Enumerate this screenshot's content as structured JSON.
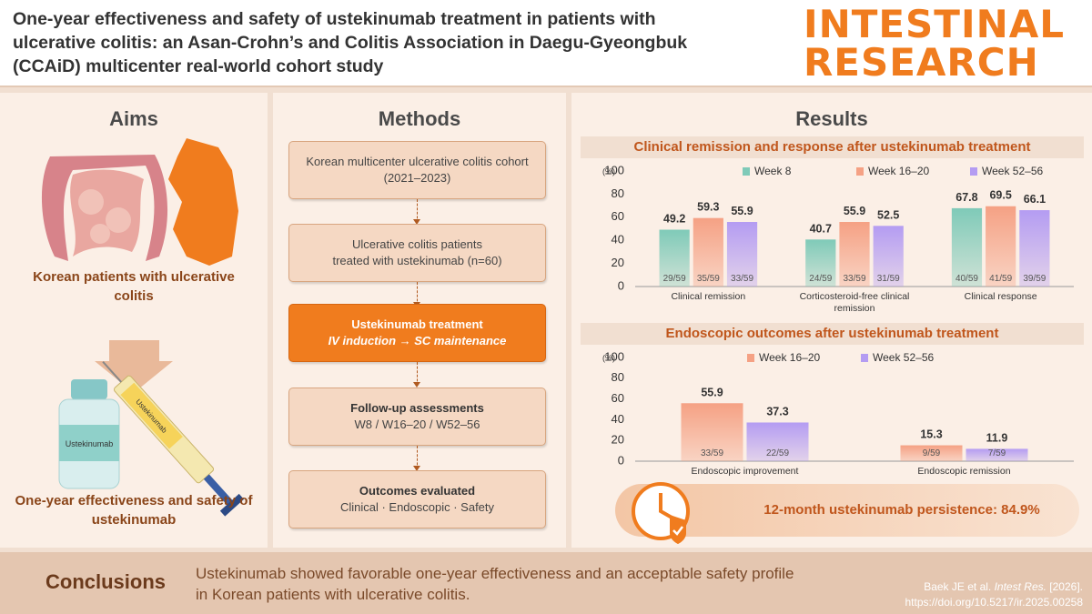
{
  "header": {
    "title_lines": [
      "One-year effectiveness and safety of ustekinumab treatment in patients with",
      "ulcerative colitis: an Asan-Crohn’s and Colitis Association in Daegu-Gyeongbuk",
      "(CCAiD) multicenter real-world cohort study"
    ],
    "journal_lines": [
      "INTESTINAL",
      "RESEARCH"
    ]
  },
  "aims": {
    "heading": "Aims",
    "population": "Korean patients with ulcerative colitis",
    "drug_label": "Ustekinumab",
    "objective": "One-year effectiveness and safety of ustekinumab"
  },
  "methods": {
    "heading": "Methods",
    "steps": [
      {
        "lines": [
          "Korean multicenter ulcerative colitis cohort",
          "(2021–2023)"
        ]
      },
      {
        "lines": [
          "Ulcerative colitis patients",
          "treated with ustekinumab (n=60)"
        ]
      },
      {
        "lines": [
          "Ustekinumab treatment",
          "IV induction → SC maintenance"
        ]
      },
      {
        "lines": [
          "Follow-up assessments",
          "W8 / W16–20 / W52–56"
        ]
      },
      {
        "lines": [
          "Outcomes evaluated",
          "Clinical · Endoscopic · Safety"
        ]
      }
    ]
  },
  "results": {
    "heading": "Results",
    "persistence": "12-month ustekinumab persistence: 84.9%"
  },
  "chart_data": [
    {
      "type": "bar",
      "title": "Clinical remission and response after ustekinumab treatment",
      "y_unit": "(%)",
      "categories": [
        "Clinical remission",
        "Corticosteroid-free clinical remission",
        "Clinical response"
      ],
      "series": [
        {
          "name": "Week 8",
          "color": "#7fcab8",
          "values": [
            49.2,
            40.7,
            67.8
          ],
          "fractions": [
            "29/59",
            "24/59",
            "40/59"
          ]
        },
        {
          "name": "Week 16–20",
          "color": "#f5a184",
          "values": [
            59.3,
            55.9,
            69.5
          ],
          "fractions": [
            "35/59",
            "33/59",
            "41/59"
          ]
        },
        {
          "name": "Week 52–56",
          "color": "#b49cf2",
          "values": [
            55.9,
            52.5,
            66.1
          ],
          "fractions": [
            "33/59",
            "31/59",
            "39/59"
          ]
        }
      ],
      "ylim": [
        0,
        100
      ],
      "yticks": [
        0,
        20,
        40,
        60,
        80,
        100
      ],
      "grid": false
    },
    {
      "type": "bar",
      "title": "Endoscopic outcomes after ustekinumab treatment",
      "y_unit": "(%)",
      "categories": [
        "Endoscopic improvement",
        "Endoscopic remission"
      ],
      "series": [
        {
          "name": "Week 16–20",
          "color": "#f5a184",
          "values": [
            55.9,
            15.3
          ],
          "fractions": [
            "33/59",
            "9/59"
          ]
        },
        {
          "name": "Week 52–56",
          "color": "#b49cf2",
          "values": [
            37.3,
            11.9
          ],
          "fractions": [
            "22/59",
            "7/59"
          ]
        }
      ],
      "ylim": [
        0,
        100
      ],
      "yticks": [
        0,
        20,
        40,
        60,
        80,
        100
      ],
      "grid": false
    }
  ],
  "conclusions": {
    "heading": "Conclusions",
    "lines": [
      "Ustekinumab showed favorable one-year effectiveness and an acceptable safety profile",
      "in Korean patients with ulcerative colitis."
    ],
    "citation": {
      "authors": "Baek JE et al.",
      "journal": "Intest Res.",
      "year": "[2026].",
      "doi": "https://doi.org/10.5217/ir.2025.00258"
    }
  }
}
